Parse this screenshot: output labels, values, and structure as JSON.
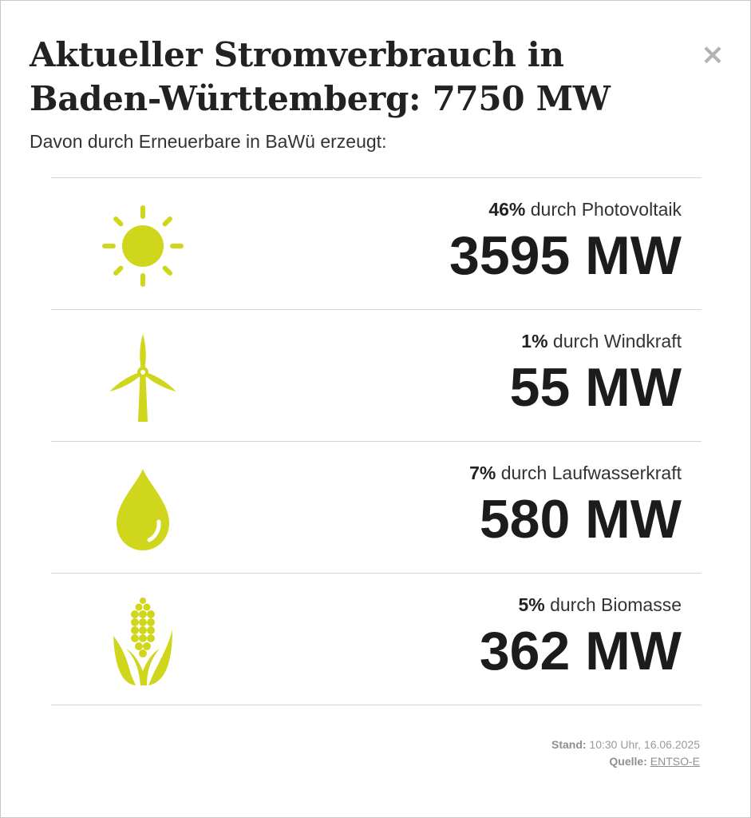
{
  "header": {
    "title": "Aktueller Stromverbrauch in Baden-Württemberg: 7750 MW",
    "subtitle": "Davon durch Erneuerbare in BaWü erzeugt:",
    "close_label": "×"
  },
  "colors": {
    "accent": "#cfd61c",
    "text": "#222222",
    "divider": "#d4d4d4"
  },
  "sources": [
    {
      "icon": "sun-icon",
      "percent": "46%",
      "label": " durch Photovoltaik",
      "value": "3595 MW"
    },
    {
      "icon": "wind-turbine-icon",
      "percent": "1%",
      "label": " durch Windkraft",
      "value": "55 MW"
    },
    {
      "icon": "water-drop-icon",
      "percent": "7%",
      "label": " durch Laufwasserkraft",
      "value": "580 MW"
    },
    {
      "icon": "corn-icon",
      "percent": "5%",
      "label": " durch Biomasse",
      "value": "362 MW"
    }
  ],
  "footer": {
    "stand_label": "Stand:",
    "stand_value": " 10:30 Uhr, 16.06.2025",
    "source_label": "Quelle:",
    "source_link": "ENTSO-E"
  }
}
